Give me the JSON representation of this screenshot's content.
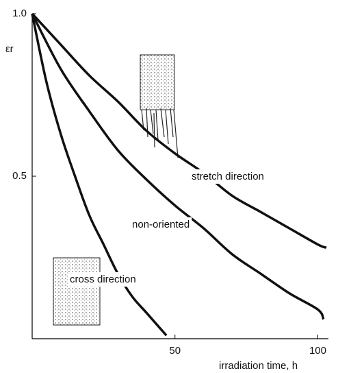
{
  "chart_data": {
    "type": "line",
    "x_label": "irradiation time, h",
    "y_label": "εr",
    "xlim": [
      0,
      103
    ],
    "ylim": [
      0,
      1
    ],
    "xticks": [
      50,
      100
    ],
    "yticks": [
      {
        "value": 1,
        "label": "1.0"
      },
      0.5
    ],
    "color": "#111111",
    "series": [
      {
        "name": "stretch direction",
        "x": [
          0,
          10,
          20,
          30,
          40,
          50,
          60,
          70,
          80,
          90,
          100,
          103
        ],
        "values": [
          1,
          0.905,
          0.81,
          0.73,
          0.64,
          0.57,
          0.51,
          0.44,
          0.39,
          0.34,
          0.29,
          0.28
        ]
      },
      {
        "name": "non-oriented",
        "x": [
          0,
          10,
          20,
          30,
          40,
          50,
          60,
          70,
          80,
          90,
          100,
          102
        ],
        "values": [
          1,
          0.83,
          0.7,
          0.58,
          0.49,
          0.41,
          0.34,
          0.26,
          0.2,
          0.14,
          0.09,
          0.06
        ]
      },
      {
        "name": "cross direction",
        "x": [
          0,
          5,
          10,
          15,
          20,
          25,
          30,
          35,
          40,
          47
        ],
        "values": [
          1,
          0.79,
          0.63,
          0.5,
          0.38,
          0.29,
          0.2,
          0.13,
          0.08,
          0.01
        ]
      }
    ]
  }
}
